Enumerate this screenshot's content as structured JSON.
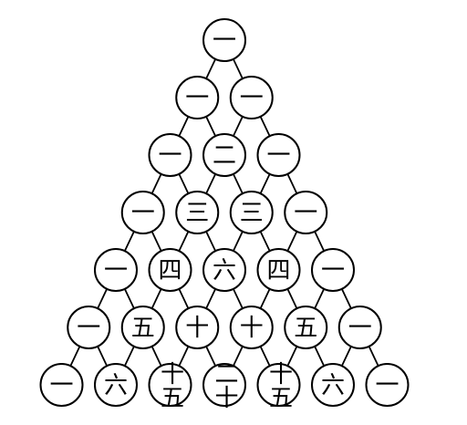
{
  "triangle": {
    "rows": [
      [
        "一"
      ],
      [
        "一",
        "一"
      ],
      [
        "一",
        "二",
        "一"
      ],
      [
        "一",
        "三",
        "三",
        "一"
      ],
      [
        "一",
        "四",
        "六",
        "四",
        "一"
      ],
      [
        "一",
        "五",
        "十",
        "十",
        "五",
        "一"
      ],
      [
        "一",
        "六",
        "十五",
        "二十",
        "十五",
        "六",
        "一"
      ]
    ]
  },
  "style": {
    "line_color": "#000000",
    "node_fill": "#ffffff"
  }
}
